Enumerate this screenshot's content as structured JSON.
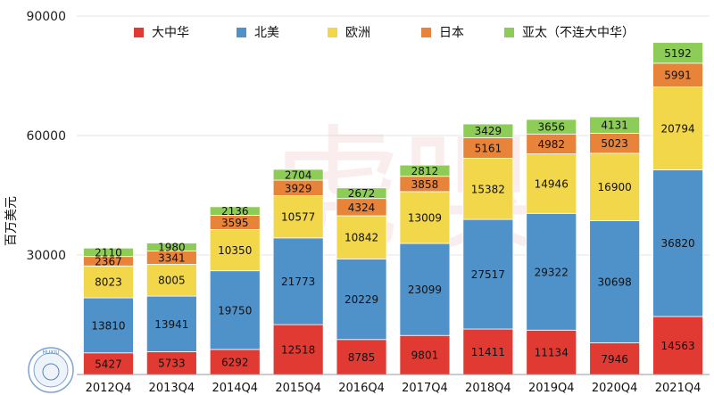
{
  "chart_data": {
    "type": "bar",
    "stacked": true,
    "title": "",
    "xlabel": "",
    "ylabel": "百万美元",
    "ylim": [
      0,
      90000
    ],
    "yticks": [
      30000,
      60000,
      90000
    ],
    "grid": true,
    "legend_position": "top",
    "categories": [
      "2012Q4",
      "2013Q4",
      "2014Q4",
      "2015Q4",
      "2016Q4",
      "2017Q4",
      "2018Q4",
      "2019Q4",
      "2020Q4",
      "2021Q4"
    ],
    "series": [
      {
        "name": "大中华",
        "color": "#e03a33",
        "values": [
          5427,
          5733,
          6292,
          12518,
          8785,
          9801,
          11411,
          11134,
          7946,
          14563
        ]
      },
      {
        "name": "北美",
        "color": "#4f91c9",
        "values": [
          13810,
          13941,
          19750,
          21773,
          20229,
          23099,
          27517,
          29322,
          30698,
          36820
        ]
      },
      {
        "name": "欧洲",
        "color": "#f2d74a",
        "values": [
          8023,
          8005,
          10350,
          10577,
          10842,
          13009,
          15382,
          14946,
          16900,
          20794
        ]
      },
      {
        "name": "日本",
        "color": "#e8833a",
        "values": [
          2367,
          3341,
          3595,
          3929,
          4324,
          3858,
          5161,
          4982,
          5023,
          5991
        ]
      },
      {
        "name": "亚太（不连大中华）",
        "color": "#8ccc57",
        "values": [
          2110,
          1980,
          2136,
          2704,
          2672,
          2812,
          3429,
          3656,
          4131,
          5192
        ]
      }
    ]
  },
  "watermark": {
    "text": "虎嗅"
  },
  "seal": {
    "text": "HUXIU"
  }
}
